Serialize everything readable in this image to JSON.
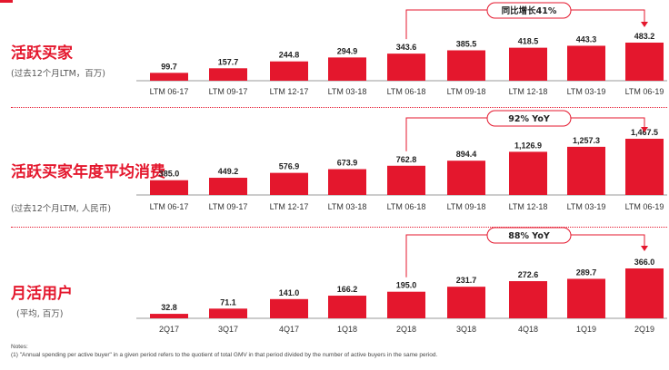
{
  "accent_color": "#e4172d",
  "panels": [
    {
      "title": "活跃买家",
      "subtitle": "(过去12个月LTM，百万)",
      "growth_label": "同比增长41%",
      "chart_data": {
        "type": "bar",
        "categories": [
          "LTM 06-17",
          "LTM 09-17",
          "LTM 12-17",
          "LTM 03-18",
          "LTM 06-18",
          "LTM 09-18",
          "LTM 12-18",
          "LTM 03-19",
          "LTM 06-19"
        ],
        "values": [
          99.7,
          157.7,
          244.8,
          294.9,
          343.6,
          385.5,
          418.5,
          443.3,
          483.2
        ],
        "value_labels": [
          "99.7",
          "157.7",
          "244.8",
          "294.9",
          "343.6",
          "385.5",
          "418.5",
          "443.3",
          "483.2"
        ],
        "title": "活跃买家"
      }
    },
    {
      "title": "活跃买家年度平均消费",
      "subtitle": "(过去12个月LTM, 人民币)",
      "growth_label": "92% YoY",
      "chart_data": {
        "type": "bar",
        "categories": [
          "LTM 06-17",
          "LTM 09-17",
          "LTM 12-17",
          "LTM 03-18",
          "LTM 06-18",
          "LTM 09-18",
          "LTM 12-18",
          "LTM 03-19",
          "LTM 06-19"
        ],
        "values": [
          385.0,
          449.2,
          576.9,
          673.9,
          762.8,
          894.4,
          1126.9,
          1257.3,
          1467.5
        ],
        "value_labels": [
          "385.0",
          "449.2",
          "576.9",
          "673.9",
          "762.8",
          "894.4",
          "1,126.9",
          "1,257.3",
          "1,467.5"
        ],
        "title": "活跃买家年度平均消费"
      }
    },
    {
      "title": "月活用户",
      "subtitle": "(平均, 百万)",
      "growth_label": "88% YoY",
      "chart_data": {
        "type": "bar",
        "categories": [
          "2Q17",
          "3Q17",
          "4Q17",
          "1Q18",
          "2Q18",
          "3Q18",
          "4Q18",
          "1Q19",
          "2Q19"
        ],
        "values": [
          32.8,
          71.1,
          141.0,
          166.2,
          195.0,
          231.7,
          272.6,
          289.7,
          366.0
        ],
        "value_labels": [
          "32.8",
          "71.1",
          "141.0",
          "166.2",
          "195.0",
          "231.7",
          "272.6",
          "289.7",
          "366.0"
        ],
        "title": "月活用户"
      }
    }
  ],
  "notes": {
    "heading": "Notes:",
    "items": [
      "(1)      \"Annual spending per active buyer\" in a given period refers to the quotient of total GMV in that period divided by the number of active buyers in the same period."
    ]
  }
}
